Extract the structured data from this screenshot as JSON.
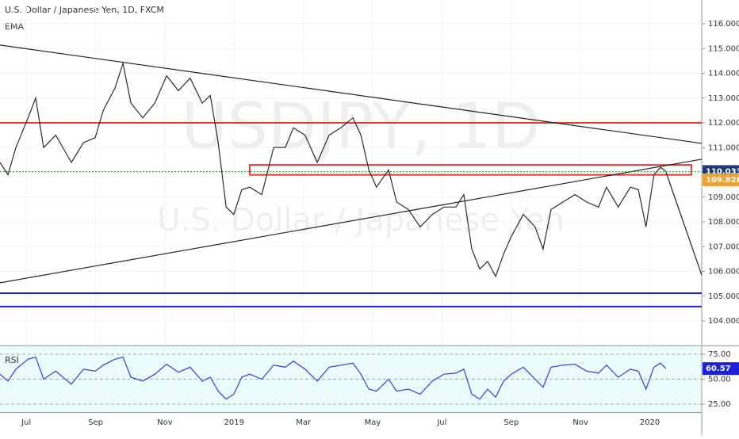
{
  "chart_data": [
    {
      "type": "line",
      "title": "U.S. Dollar / Japanese Yen, 1D, FXCM",
      "indicator": "EMA",
      "watermark": "USDJPY, 1D",
      "watermark_sub": "U.S. Dollar / Japanese Yen",
      "x": [
        -0.76,
        -0.53,
        -0.3,
        0.05,
        0.27,
        0.5,
        0.85,
        1.3,
        1.65,
        1.99,
        2.22,
        2.56,
        2.79,
        3.02,
        3.36,
        3.71,
        4.05,
        4.39,
        4.73,
        5.08,
        5.31,
        5.54,
        5.77,
        5.99,
        6.22,
        6.45,
        6.8,
        7.14,
        7.48,
        7.71,
        8.05,
        8.4,
        8.74,
        9.08,
        9.43,
        9.66,
        9.89,
        10.11,
        10.46,
        10.69,
        11.03,
        11.37,
        11.72,
        12.06,
        12.4,
        12.63,
        12.86,
        13.09,
        13.32,
        13.55,
        13.78,
        14.0,
        14.35,
        14.69,
        14.92,
        15.15,
        15.49,
        15.84,
        16.18,
        16.52,
        16.75,
        17.09,
        17.44,
        17.67,
        17.89,
        18.12,
        18.31,
        18.47
      ],
      "values": [
        110.4,
        109.9,
        111.0,
        112.2,
        113.0,
        111.0,
        111.5,
        110.4,
        111.2,
        111.4,
        112.5,
        113.4,
        114.4,
        112.8,
        112.2,
        112.8,
        113.9,
        113.3,
        113.8,
        112.8,
        113.1,
        111.2,
        108.6,
        108.3,
        109.3,
        109.4,
        109.1,
        111.0,
        111.0,
        111.8,
        111.5,
        110.4,
        111.5,
        111.8,
        112.2,
        111.5,
        110.1,
        109.4,
        110.1,
        108.8,
        108.5,
        107.8,
        108.3,
        108.6,
        108.6,
        109.1,
        106.9,
        106.1,
        106.4,
        105.8,
        106.7,
        107.4,
        108.3,
        107.8,
        106.9,
        108.5,
        108.8,
        109.1,
        108.8,
        108.6,
        109.4,
        108.6,
        109.4,
        109.3,
        107.8,
        109.9,
        110.2,
        110.033
      ],
      "color": "#2b2b2b",
      "xlim": [
        -0.76,
        19.5
      ],
      "xticks": [
        {
          "value": 0,
          "label": "Jul"
        },
        {
          "value": 2,
          "label": "Sep"
        },
        {
          "value": 4,
          "label": "Nov"
        },
        {
          "value": 6,
          "label": "2019"
        },
        {
          "value": 8,
          "label": "Mar"
        },
        {
          "value": 10,
          "label": "May"
        },
        {
          "value": 12,
          "label": "Jul"
        },
        {
          "value": 14,
          "label": "Sep"
        },
        {
          "value": 16,
          "label": "Nov"
        },
        {
          "value": 18,
          "label": "2020"
        }
      ],
      "ylim": [
        103.04,
        116.96
      ],
      "yticks": [
        {
          "value": 104,
          "label": "104.000"
        },
        {
          "value": 105,
          "label": "105.000"
        },
        {
          "value": 106,
          "label": "106.000"
        },
        {
          "value": 107,
          "label": "107.000"
        },
        {
          "value": 108,
          "label": "108.000"
        },
        {
          "value": 109,
          "label": "109.000"
        },
        {
          "value": 110,
          "label": "110.000"
        },
        {
          "value": 111,
          "label": "111.000"
        },
        {
          "value": 112,
          "label": "112.000"
        },
        {
          "value": 113,
          "label": "113.000"
        },
        {
          "value": 114,
          "label": "114.000"
        },
        {
          "value": 115,
          "label": "115.000"
        },
        {
          "value": 116,
          "label": "116.000"
        }
      ],
      "hlines": [
        {
          "value": 112.0,
          "color": "#e53935"
        },
        {
          "value": 105.12,
          "color": "#1e22d6"
        },
        {
          "value": 104.58,
          "color": "#1e22d6"
        }
      ],
      "zone": {
        "x": [
          6.45,
          19.2
        ],
        "y": [
          110.3,
          109.9
        ],
        "color": "#e53935"
      },
      "trendlines": [
        {
          "x": [
            -0.76,
            19.5
          ],
          "y": [
            115.14,
            111.17
          ]
        },
        {
          "x": [
            -0.76,
            19.5
          ],
          "y": [
            105.54,
            110.53
          ]
        },
        {
          "x": [
            18.47,
            19.5
          ],
          "y": [
            110.0,
            105.85
          ]
        }
      ],
      "price_labels": [
        {
          "value": 110.033,
          "color": "#1f3b73"
        },
        {
          "value": 109.828,
          "color": "#f0a030"
        }
      ]
    },
    {
      "type": "line",
      "title": "RSI",
      "x": [
        -0.76,
        -0.53,
        -0.3,
        0.05,
        0.27,
        0.5,
        0.85,
        1.3,
        1.65,
        1.99,
        2.22,
        2.56,
        2.79,
        3.02,
        3.36,
        3.71,
        4.05,
        4.39,
        4.73,
        5.08,
        5.31,
        5.54,
        5.77,
        5.99,
        6.22,
        6.45,
        6.8,
        7.14,
        7.48,
        7.71,
        8.05,
        8.4,
        8.74,
        9.08,
        9.43,
        9.66,
        9.89,
        10.11,
        10.46,
        10.69,
        11.03,
        11.37,
        11.72,
        12.06,
        12.4,
        12.63,
        12.86,
        13.09,
        13.32,
        13.55,
        13.78,
        14.0,
        14.35,
        14.69,
        14.92,
        15.15,
        15.49,
        15.84,
        16.18,
        16.52,
        16.75,
        17.09,
        17.44,
        17.67,
        17.89,
        18.12,
        18.31,
        18.47
      ],
      "values": [
        55,
        48,
        60,
        70,
        72,
        50,
        58,
        45,
        60,
        58,
        64,
        70,
        72,
        52,
        48,
        55,
        65,
        57,
        62,
        48,
        52,
        38,
        30,
        35,
        52,
        55,
        50,
        64,
        62,
        68,
        60,
        48,
        62,
        64,
        66,
        55,
        40,
        38,
        50,
        38,
        40,
        35,
        48,
        55,
        56,
        60,
        35,
        30,
        40,
        32,
        48,
        55,
        62,
        50,
        42,
        62,
        64,
        65,
        58,
        56,
        64,
        52,
        60,
        58,
        40,
        62,
        66,
        60.57
      ],
      "color": "#3b3bd6",
      "xlim": [
        -0.76,
        19.5
      ],
      "ylim": [
        17.1,
        82.1
      ],
      "yticks": [
        {
          "value": 25,
          "label": "25.00"
        },
        {
          "value": 50,
          "label": "50.00"
        },
        {
          "value": 75,
          "label": "75.00"
        }
      ],
      "value_label": {
        "value": 60.57,
        "color": "#1e22d6"
      }
    }
  ]
}
